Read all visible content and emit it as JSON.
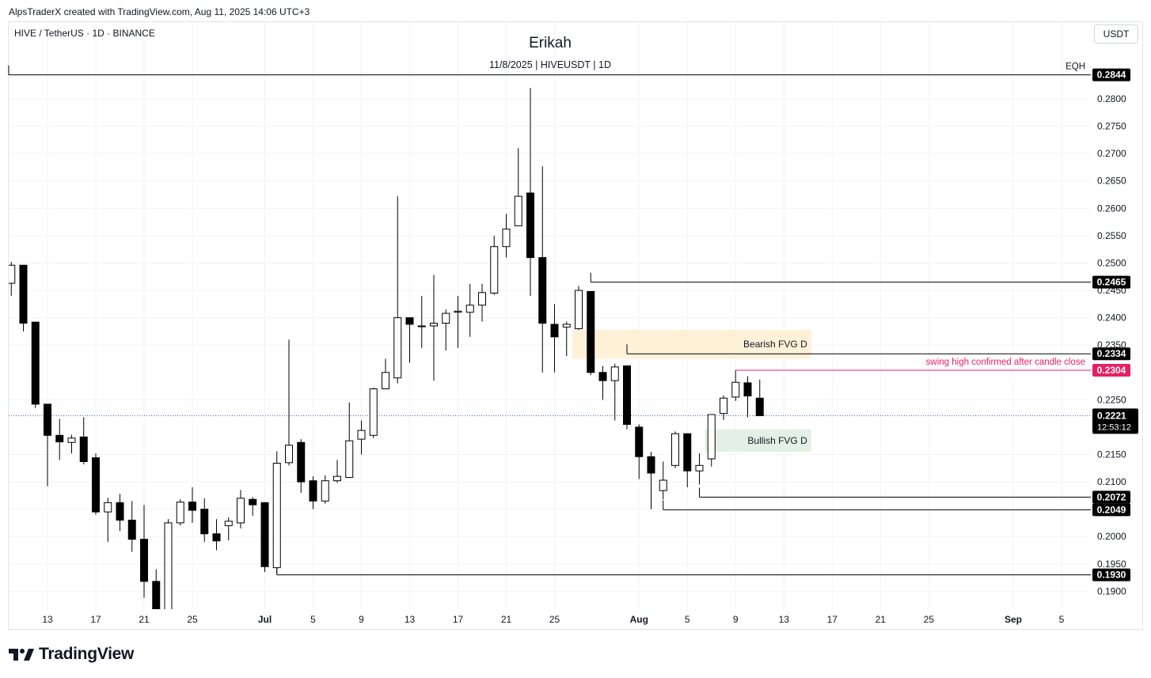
{
  "header": {
    "credit": "AlpsTraderX created with TradingView.com, Aug 11, 2025 14:06 UTC+3",
    "symbol": "HIVE / TetherUS · 1D · BINANCE",
    "title": "Erikah",
    "subtitle": "11/8/2025 | HIVEUSDT | 1D",
    "currency_button": "USDT"
  },
  "footer": {
    "brand": "TradingView"
  },
  "colors": {
    "up_candle": "#ffffff",
    "down_candle": "#000000",
    "wick": "#000000",
    "bearish_fvg": "#fdf1d8",
    "bullish_fvg": "#e2f1e3",
    "swing_line": "#e91e63",
    "dot_line": "#3a55d6"
  },
  "chart_data": {
    "type": "candlestick",
    "title": "Erikah",
    "ylim": [
      0.186,
      0.2855
    ],
    "y_ticks": [
      "0.2800",
      "0.2750",
      "0.2700",
      "0.2650",
      "0.2600",
      "0.2550",
      "0.2500",
      "0.2450",
      "0.2400",
      "0.2350",
      "0.2250",
      "0.2150",
      "0.2100",
      "0.2050",
      "0.2000",
      "0.1950",
      "0.1900"
    ],
    "x_ticks": [
      {
        "label": "13",
        "day": 0
      },
      {
        "label": "17",
        "day": 4
      },
      {
        "label": "21",
        "day": 8
      },
      {
        "label": "25",
        "day": 12
      },
      {
        "label": "Jul",
        "day": 18
      },
      {
        "label": "5",
        "day": 22
      },
      {
        "label": "9",
        "day": 26
      },
      {
        "label": "13",
        "day": 30
      },
      {
        "label": "17",
        "day": 34
      },
      {
        "label": "21",
        "day": 38
      },
      {
        "label": "25",
        "day": 42
      },
      {
        "label": "Aug",
        "day": 49
      },
      {
        "label": "5",
        "day": 53
      },
      {
        "label": "9",
        "day": 57
      },
      {
        "label": "13",
        "day": 61
      },
      {
        "label": "17",
        "day": 65
      },
      {
        "label": "21",
        "day": 69
      },
      {
        "label": "25",
        "day": 73
      },
      {
        "label": "Sep",
        "day": 80
      },
      {
        "label": "5",
        "day": 84
      }
    ],
    "candles": [
      {
        "d": -3,
        "o": 0.2463,
        "h": 0.2502,
        "l": 0.244,
        "c": 0.2496
      },
      {
        "d": -2,
        "o": 0.2496,
        "h": 0.2496,
        "l": 0.2375,
        "c": 0.239
      },
      {
        "d": -1,
        "o": 0.2392,
        "h": 0.2392,
        "l": 0.2235,
        "c": 0.2242
      },
      {
        "d": 0,
        "o": 0.2242,
        "h": 0.2242,
        "l": 0.2092,
        "c": 0.2185
      },
      {
        "d": 1,
        "o": 0.2185,
        "h": 0.2215,
        "l": 0.214,
        "c": 0.2173
      },
      {
        "d": 2,
        "o": 0.2172,
        "h": 0.2186,
        "l": 0.2152,
        "c": 0.218
      },
      {
        "d": 3,
        "o": 0.2182,
        "h": 0.2218,
        "l": 0.2132,
        "c": 0.2137
      },
      {
        "d": 4,
        "o": 0.2144,
        "h": 0.2152,
        "l": 0.204,
        "c": 0.2045
      },
      {
        "d": 5,
        "o": 0.2045,
        "h": 0.2071,
        "l": 0.199,
        "c": 0.2062
      },
      {
        "d": 6,
        "o": 0.2062,
        "h": 0.2078,
        "l": 0.201,
        "c": 0.203
      },
      {
        "d": 7,
        "o": 0.203,
        "h": 0.2065,
        "l": 0.1972,
        "c": 0.1995
      },
      {
        "d": 8,
        "o": 0.1995,
        "h": 0.2058,
        "l": 0.1888,
        "c": 0.1918
      },
      {
        "d": 9,
        "o": 0.1918,
        "h": 0.194,
        "l": 0.1862,
        "c": 0.1867
      },
      {
        "d": 10,
        "o": 0.1865,
        "h": 0.2032,
        "l": 0.1865,
        "c": 0.2025
      },
      {
        "d": 11,
        "o": 0.2025,
        "h": 0.2068,
        "l": 0.202,
        "c": 0.2063
      },
      {
        "d": 12,
        "o": 0.2063,
        "h": 0.209,
        "l": 0.2025,
        "c": 0.2048
      },
      {
        "d": 13,
        "o": 0.205,
        "h": 0.207,
        "l": 0.199,
        "c": 0.2005
      },
      {
        "d": 14,
        "o": 0.2005,
        "h": 0.2032,
        "l": 0.1975,
        "c": 0.1992
      },
      {
        "d": 15,
        "o": 0.202,
        "h": 0.2035,
        "l": 0.1993,
        "c": 0.2028
      },
      {
        "d": 16,
        "o": 0.2025,
        "h": 0.2085,
        "l": 0.2015,
        "c": 0.207
      },
      {
        "d": 17,
        "o": 0.2068,
        "h": 0.2072,
        "l": 0.2038,
        "c": 0.2058
      },
      {
        "d": 18,
        "o": 0.2062,
        "h": 0.2062,
        "l": 0.1935,
        "c": 0.1945
      },
      {
        "d": 19,
        "o": 0.1943,
        "h": 0.2156,
        "l": 0.1932,
        "c": 0.2134
      },
      {
        "d": 20,
        "o": 0.2135,
        "h": 0.236,
        "l": 0.213,
        "c": 0.2167
      },
      {
        "d": 21,
        "o": 0.2172,
        "h": 0.2178,
        "l": 0.208,
        "c": 0.21
      },
      {
        "d": 22,
        "o": 0.2102,
        "h": 0.211,
        "l": 0.205,
        "c": 0.2065
      },
      {
        "d": 23,
        "o": 0.2065,
        "h": 0.2112,
        "l": 0.206,
        "c": 0.2102
      },
      {
        "d": 24,
        "o": 0.2102,
        "h": 0.214,
        "l": 0.2098,
        "c": 0.211
      },
      {
        "d": 25,
        "o": 0.2108,
        "h": 0.2245,
        "l": 0.2108,
        "c": 0.2175
      },
      {
        "d": 26,
        "o": 0.2178,
        "h": 0.2212,
        "l": 0.215,
        "c": 0.2194
      },
      {
        "d": 27,
        "o": 0.2185,
        "h": 0.2272,
        "l": 0.218,
        "c": 0.227
      },
      {
        "d": 28,
        "o": 0.227,
        "h": 0.2325,
        "l": 0.2275,
        "c": 0.23
      },
      {
        "d": 29,
        "o": 0.229,
        "h": 0.2622,
        "l": 0.228,
        "c": 0.24
      },
      {
        "d": 30,
        "o": 0.24,
        "h": 0.24,
        "l": 0.2318,
        "c": 0.2388
      },
      {
        "d": 31,
        "o": 0.2385,
        "h": 0.244,
        "l": 0.2345,
        "c": 0.2385
      },
      {
        "d": 32,
        "o": 0.2385,
        "h": 0.2478,
        "l": 0.2285,
        "c": 0.239
      },
      {
        "d": 33,
        "o": 0.239,
        "h": 0.2415,
        "l": 0.234,
        "c": 0.2408
      },
      {
        "d": 34,
        "o": 0.241,
        "h": 0.244,
        "l": 0.2345,
        "c": 0.2412
      },
      {
        "d": 35,
        "o": 0.241,
        "h": 0.2462,
        "l": 0.2365,
        "c": 0.2423
      },
      {
        "d": 36,
        "o": 0.2423,
        "h": 0.2462,
        "l": 0.2393,
        "c": 0.2446
      },
      {
        "d": 37,
        "o": 0.2445,
        "h": 0.255,
        "l": 0.2442,
        "c": 0.253
      },
      {
        "d": 38,
        "o": 0.253,
        "h": 0.259,
        "l": 0.251,
        "c": 0.2562
      },
      {
        "d": 39,
        "o": 0.2568,
        "h": 0.271,
        "l": 0.2568,
        "c": 0.2622
      },
      {
        "d": 40,
        "o": 0.2628,
        "h": 0.282,
        "l": 0.244,
        "c": 0.251
      },
      {
        "d": 41,
        "o": 0.251,
        "h": 0.2677,
        "l": 0.23,
        "c": 0.239
      },
      {
        "d": 42,
        "o": 0.2388,
        "h": 0.2425,
        "l": 0.23,
        "c": 0.2365
      },
      {
        "d": 43,
        "o": 0.2383,
        "h": 0.2393,
        "l": 0.233,
        "c": 0.2388
      },
      {
        "d": 44,
        "o": 0.238,
        "h": 0.2458,
        "l": 0.2378,
        "c": 0.245
      },
      {
        "d": 45,
        "o": 0.2448,
        "h": 0.2448,
        "l": 0.2295,
        "c": 0.23
      },
      {
        "d": 46,
        "o": 0.23,
        "h": 0.2312,
        "l": 0.225,
        "c": 0.2285
      },
      {
        "d": 47,
        "o": 0.2285,
        "h": 0.2316,
        "l": 0.2212,
        "c": 0.231
      },
      {
        "d": 48,
        "o": 0.2312,
        "h": 0.2312,
        "l": 0.2196,
        "c": 0.2205
      },
      {
        "d": 49,
        "o": 0.22,
        "h": 0.2205,
        "l": 0.2105,
        "c": 0.2146
      },
      {
        "d": 50,
        "o": 0.2146,
        "h": 0.2155,
        "l": 0.205,
        "c": 0.2116
      },
      {
        "d": 51,
        "o": 0.2084,
        "h": 0.2137,
        "l": 0.2068,
        "c": 0.2103
      },
      {
        "d": 52,
        "o": 0.213,
        "h": 0.2192,
        "l": 0.2125,
        "c": 0.2188
      },
      {
        "d": 53,
        "o": 0.2188,
        "h": 0.2188,
        "l": 0.209,
        "c": 0.212
      },
      {
        "d": 54,
        "o": 0.212,
        "h": 0.2152,
        "l": 0.2095,
        "c": 0.213
      },
      {
        "d": 55,
        "o": 0.2142,
        "h": 0.2223,
        "l": 0.2128,
        "c": 0.2223
      },
      {
        "d": 56,
        "o": 0.2225,
        "h": 0.2258,
        "l": 0.2213,
        "c": 0.2253
      },
      {
        "d": 57,
        "o": 0.2255,
        "h": 0.2304,
        "l": 0.2248,
        "c": 0.2282
      },
      {
        "d": 58,
        "o": 0.2281,
        "h": 0.2293,
        "l": 0.2218,
        "c": 0.2257
      },
      {
        "d": 59,
        "o": 0.2253,
        "h": 0.2287,
        "l": 0.222,
        "c": 0.2221
      }
    ],
    "levels": [
      {
        "label": "0.2844",
        "price": 0.2844,
        "name": "EQH",
        "from_day": -4
      },
      {
        "label": "0.2465",
        "price": 0.2465,
        "from_day": 45
      },
      {
        "label": "0.2334",
        "price": 0.2334,
        "from_day": 48
      },
      {
        "label": "0.2304",
        "price": 0.2304,
        "from_day": 57,
        "note": "swing high confirmed after candle close"
      },
      {
        "label": "0.2072",
        "price": 0.2072,
        "from_day": 54
      },
      {
        "label": "0.2049",
        "price": 0.2049,
        "from_day": 51
      },
      {
        "label": "0.1930",
        "price": 0.193,
        "from_day": 19
      }
    ],
    "current_price": {
      "label": "0.2221",
      "price": 0.2221,
      "countdown": "12:53:12"
    },
    "zones": [
      {
        "label": "Bearish FVG D",
        "top": 0.2378,
        "bottom": 0.2325,
        "from_day": 44,
        "to_day": 63
      },
      {
        "label": "Bullish FVG D",
        "top": 0.2196,
        "bottom": 0.2155,
        "from_day": 55,
        "to_day": 63
      }
    ]
  }
}
